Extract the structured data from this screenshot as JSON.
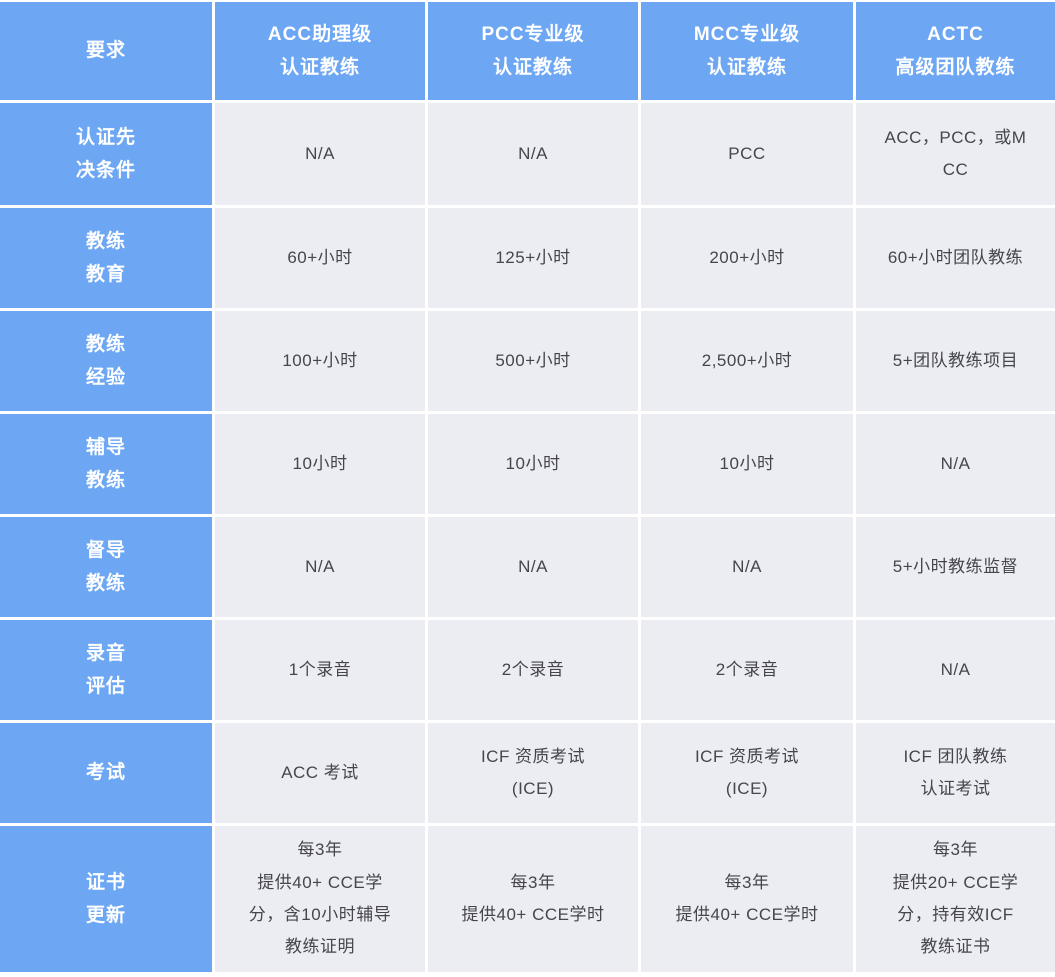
{
  "table": {
    "title_column_header": "要求",
    "header": [
      "要求",
      "ACC助理级\n认证教练",
      "PCC专业级\n认证教练",
      "MCC专业级\n认证教练",
      "ACTC\n高级团队教练"
    ],
    "rows": [
      {
        "label": "认证先\n决条件",
        "cells": [
          "N/A",
          "N/A",
          "PCC",
          "ACC，PCC，或M\nCC"
        ]
      },
      {
        "label": "教练\n教育",
        "cells": [
          "60+小时",
          "125+小时",
          "200+小时",
          "60+小时团队教练"
        ]
      },
      {
        "label": "教练\n经验",
        "cells": [
          "100+小时",
          "500+小时",
          "2,500+小时",
          "5+团队教练项目"
        ]
      },
      {
        "label": "辅导\n教练",
        "cells": [
          "10小时",
          "10小时",
          "10小时",
          "N/A"
        ]
      },
      {
        "label": "督导\n教练",
        "cells": [
          "N/A",
          "N/A",
          "N/A",
          "5+小时教练监督"
        ]
      },
      {
        "label": "录音\n评估",
        "cells": [
          "1个录音",
          "2个录音",
          "2个录音",
          "N/A"
        ]
      },
      {
        "label": "考试",
        "cells": [
          "ACC 考试",
          "ICF 资质考试\n(ICE)",
          "ICF 资质考试\n(ICE)",
          "ICF 团队教练\n认证考试"
        ]
      },
      {
        "label": "证书\n更新",
        "cells": [
          "每3年\n提供40+ CCE学\n分，含10小时辅导\n教练证明",
          "每3年\n提供40+ CCE学时",
          "每3年\n提供40+ CCE学时",
          "每3年\n提供20+ CCE学\n分，持有效ICF\n教练证书"
        ]
      }
    ]
  },
  "colors": {
    "header_blue": "#6DA7F4",
    "cell_background": "#ECECF3",
    "cell_text": "#45454B",
    "header_text": "#FFFFFF",
    "grid_gap": "#FFFFFF"
  }
}
